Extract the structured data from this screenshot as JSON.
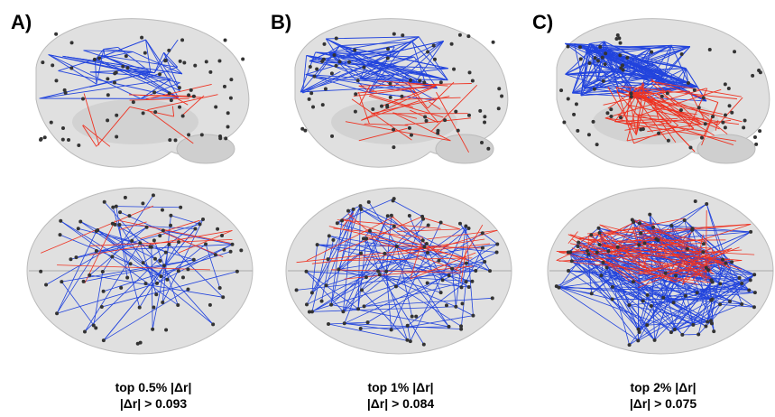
{
  "panels": [
    {
      "label": "A)",
      "caption": [
        "top 0.5% |Δr|",
        "|Δr| > 0.093"
      ]
    },
    {
      "label": "B)",
      "caption": [
        "top 1% |Δr|",
        "|Δr| > 0.084"
      ]
    },
    {
      "label": "C)",
      "caption": [
        "top 2% |Δr|",
        "|Δr| > 0.075"
      ]
    }
  ]
}
